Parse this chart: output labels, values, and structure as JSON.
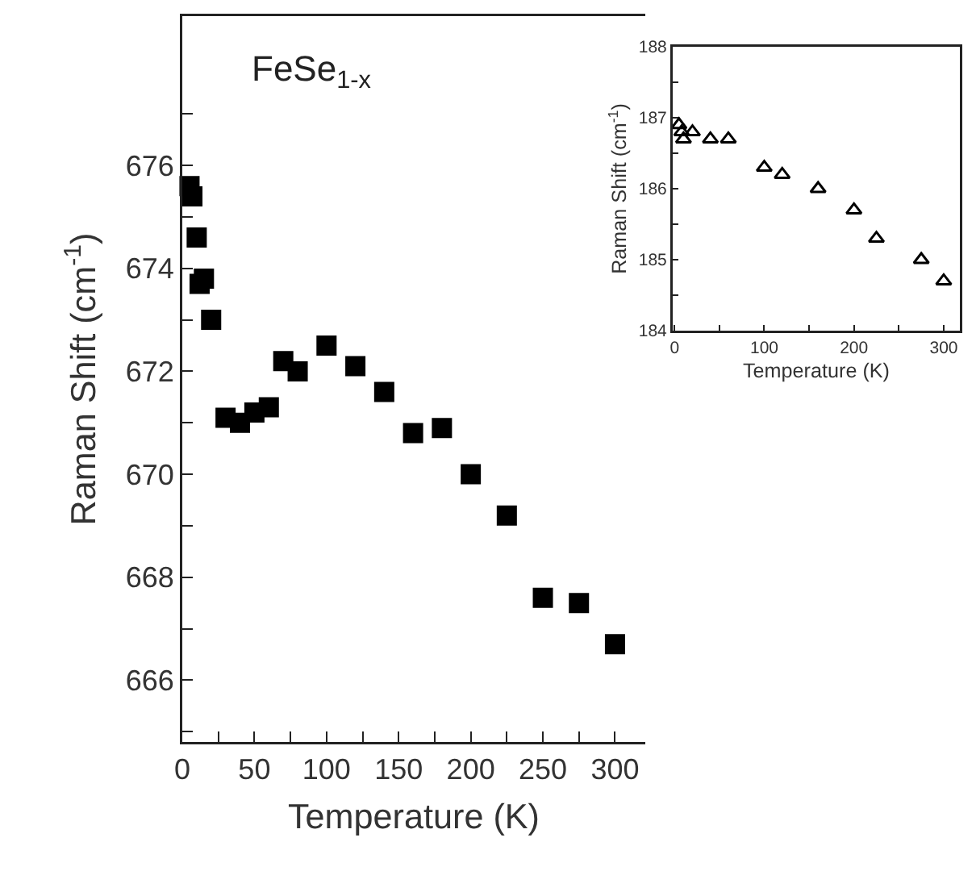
{
  "chart_data": [
    {
      "type": "scatter",
      "annotations": [
        "FeSe$_{1-x}$"
      ],
      "xlabel": "Temperature (K)",
      "ylabel": "Raman Shift (cm$^{-1}$)",
      "marker": "square",
      "grid": false,
      "xlim": [
        0,
        321
      ],
      "xticks": [
        0,
        {
          "value": 25,
          "label": null
        },
        50,
        {
          "value": 75,
          "label": null
        },
        100,
        {
          "value": 125,
          "label": null
        },
        150,
        {
          "value": 175,
          "label": null
        },
        200,
        {
          "value": 225,
          "label": null
        },
        250,
        {
          "value": 275,
          "label": null
        },
        300
      ],
      "ylim": [
        664.8,
        678.9
      ],
      "yticks": [
        {
          "value": 665,
          "label": null
        },
        666,
        {
          "value": 667,
          "label": null
        },
        668,
        {
          "value": 669,
          "label": null
        },
        670,
        {
          "value": 671,
          "label": null
        },
        672,
        {
          "value": 673,
          "label": null
        },
        674,
        {
          "value": 675,
          "label": null
        },
        676,
        {
          "value": 677,
          "label": null
        }
      ],
      "x": [
        5,
        7,
        10,
        12,
        15,
        20,
        30,
        40,
        50,
        60,
        70,
        80,
        100,
        120,
        140,
        160,
        180,
        200,
        225,
        250,
        275,
        300
      ],
      "series": [
        {
          "color": "#000000",
          "values": [
            675.6,
            675.4,
            674.6,
            673.7,
            673.8,
            673.0,
            671.1,
            671.0,
            671.2,
            671.3,
            672.2,
            672.0,
            672.5,
            672.1,
            671.6,
            670.8,
            670.9,
            670.0,
            669.2,
            667.6,
            667.5,
            666.7
          ]
        }
      ]
    },
    {
      "type": "scatter",
      "xlabel": "Temperature (K)",
      "ylabel": "Raman Shift (cm$^{-1}$)",
      "marker": "triangle",
      "grid": false,
      "xlim": [
        -2,
        318
      ],
      "xticks": [
        0,
        {
          "value": 50,
          "label": null
        },
        100,
        {
          "value": 150,
          "label": null
        },
        200,
        {
          "value": 250,
          "label": null
        },
        300
      ],
      "ylim": [
        184,
        188
      ],
      "yticks": [
        184,
        {
          "value": 184.5,
          "label": null
        },
        185,
        {
          "value": 185.5,
          "label": null
        },
        186,
        {
          "value": 186.5,
          "label": null
        },
        187,
        {
          "value": 187.5,
          "label": null
        },
        188
      ],
      "x": [
        5,
        8,
        10,
        20,
        40,
        60,
        100,
        120,
        160,
        200,
        225,
        275,
        300
      ],
      "series": [
        {
          "color": "#000000",
          "values": [
            186.9,
            186.8,
            186.7,
            186.8,
            186.7,
            186.7,
            186.3,
            186.2,
            186.0,
            185.7,
            185.3,
            185.0,
            184.7
          ]
        }
      ]
    }
  ]
}
